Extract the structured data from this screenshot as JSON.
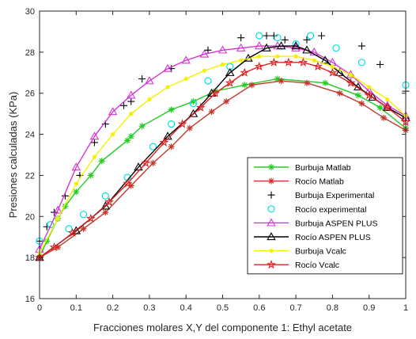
{
  "chart_data": {
    "type": "line",
    "xlabel": "Fracciones molares X,Y del componente 1: Ethyl acetate",
    "ylabel": "Presiones calculadas (KPa)",
    "xlim": [
      0,
      1
    ],
    "ylim": [
      16,
      30
    ],
    "xticks": [
      0,
      0.1,
      0.2,
      0.3,
      0.4,
      0.5,
      0.6,
      0.7,
      0.8,
      0.9,
      1
    ],
    "xtick_labels": [
      "0",
      "0.1",
      "0.2",
      "0.3",
      "0.4",
      "0.5",
      "0.6",
      "0.7",
      "0.8",
      "0.9",
      "1"
    ],
    "yticks": [
      16,
      18,
      20,
      22,
      24,
      26,
      28,
      30
    ],
    "ytick_labels": [
      "16",
      "18",
      "20",
      "22",
      "24",
      "26",
      "28",
      "30"
    ],
    "grid": false,
    "legend_position": "bottom-right",
    "series": [
      {
        "name": "Burbuja Matlab",
        "color": "#22cc22",
        "marker": "asterisk",
        "line": true,
        "x": [
          0,
          0.02,
          0.05,
          0.07,
          0.1,
          0.14,
          0.17,
          0.24,
          0.25,
          0.28,
          0.36,
          0.42,
          0.48,
          0.56,
          0.65,
          0.78,
          0.87,
          0.93,
          1
        ],
        "y": [
          18.0,
          18.8,
          19.9,
          20.5,
          21.2,
          22.0,
          22.7,
          23.7,
          23.9,
          24.4,
          25.2,
          25.6,
          26.1,
          26.4,
          26.7,
          26.5,
          25.9,
          25.3,
          24.3
        ]
      },
      {
        "name": "Rocío Matlab",
        "color": "#c0392b",
        "marker": "asterisk",
        "line": true,
        "x": [
          0,
          0.05,
          0.12,
          0.18,
          0.25,
          0.31,
          0.36,
          0.41,
          0.47,
          0.51,
          0.58,
          0.66,
          0.73,
          0.82,
          0.88,
          0.94,
          1
        ],
        "y": [
          18.0,
          18.5,
          19.4,
          20.2,
          21.5,
          22.6,
          23.4,
          24.3,
          25.1,
          25.6,
          26.4,
          26.6,
          26.5,
          26.0,
          25.5,
          24.8,
          24.2
        ]
      },
      {
        "name": "Burbuja Experimental",
        "color": "#000000",
        "marker": "plus",
        "line": false,
        "x": [
          0,
          0.02,
          0.04,
          0.07,
          0.11,
          0.15,
          0.18,
          0.23,
          0.25,
          0.28,
          0.36,
          0.46,
          0.55,
          0.62,
          0.64,
          0.67,
          0.73,
          0.77,
          0.88,
          0.93,
          1
        ],
        "y": [
          18.8,
          19.5,
          20.2,
          21.0,
          22.0,
          23.6,
          24.5,
          25.4,
          25.6,
          26.7,
          27.2,
          28.1,
          28.7,
          28.8,
          28.8,
          28.6,
          28.6,
          28.8,
          28.3,
          27.4,
          26.1
        ]
      },
      {
        "name": "Rocío experimental",
        "color": "#00e0e0",
        "marker": "circle",
        "line": false,
        "x": [
          0,
          0.03,
          0.08,
          0.12,
          0.18,
          0.24,
          0.31,
          0.36,
          0.42,
          0.46,
          0.52,
          0.6,
          0.65,
          0.7,
          0.74,
          0.81,
          0.88,
          1
        ],
        "y": [
          18.8,
          19.6,
          19.4,
          20.1,
          21.0,
          21.9,
          23.4,
          24.5,
          25.5,
          26.6,
          27.3,
          28.8,
          28.7,
          28.4,
          28.8,
          28.2,
          27.5,
          26.4
        ]
      },
      {
        "name": "Burbuja ASPEN PLUS",
        "color": "#d633d6",
        "marker": "triangle",
        "line": true,
        "x": [
          0,
          0.05,
          0.1,
          0.15,
          0.2,
          0.25,
          0.3,
          0.35,
          0.4,
          0.45,
          0.5,
          0.55,
          0.6,
          0.65,
          0.7,
          0.75,
          0.8,
          0.85,
          0.9,
          0.95,
          1
        ],
        "y": [
          18.4,
          20.3,
          22.4,
          23.9,
          25.1,
          25.9,
          26.6,
          27.2,
          27.6,
          27.9,
          28.1,
          28.2,
          28.3,
          28.3,
          28.2,
          28.0,
          27.5,
          26.9,
          26.1,
          25.4,
          24.9
        ]
      },
      {
        "name": "Rocío ASPEN PLUS",
        "color": "#000000",
        "marker": "triangle",
        "line": true,
        "x": [
          0,
          0.1,
          0.18,
          0.27,
          0.35,
          0.42,
          0.47,
          0.52,
          0.57,
          0.62,
          0.66,
          0.7,
          0.73,
          0.78,
          0.82,
          0.87,
          0.91,
          0.95,
          1
        ],
        "y": [
          18.0,
          19.3,
          20.5,
          22.4,
          23.9,
          25.0,
          26.0,
          27.0,
          27.7,
          28.2,
          28.3,
          28.3,
          28.1,
          27.6,
          27.0,
          26.3,
          25.8,
          25.3,
          24.8
        ]
      },
      {
        "name": "Burbuja Vcalc",
        "color": "#f2f200",
        "marker": "dot",
        "line": true,
        "x": [
          0,
          0.05,
          0.1,
          0.15,
          0.2,
          0.25,
          0.3,
          0.35,
          0.4,
          0.45,
          0.5,
          0.55,
          0.6,
          0.65,
          0.7,
          0.75,
          0.8,
          0.85,
          0.9,
          0.95,
          1
        ],
        "y": [
          18.2,
          19.9,
          21.6,
          22.9,
          24.0,
          25.0,
          25.7,
          26.3,
          26.7,
          27.1,
          27.4,
          27.6,
          27.8,
          27.8,
          27.8,
          27.6,
          27.3,
          26.9,
          26.3,
          25.7,
          24.9
        ]
      },
      {
        "name": "Rocío Vcalc",
        "color": "#dd2222",
        "marker": "star",
        "line": true,
        "x": [
          0,
          0.04,
          0.09,
          0.14,
          0.19,
          0.24,
          0.29,
          0.34,
          0.39,
          0.44,
          0.48,
          0.52,
          0.56,
          0.6,
          0.64,
          0.68,
          0.72,
          0.76,
          0.8,
          0.85,
          0.9,
          0.95,
          1
        ],
        "y": [
          18.0,
          18.5,
          19.2,
          19.9,
          20.7,
          21.6,
          22.6,
          23.6,
          24.5,
          25.3,
          26.0,
          26.5,
          27.0,
          27.3,
          27.5,
          27.5,
          27.5,
          27.3,
          27.0,
          26.5,
          25.9,
          25.3,
          24.6
        ]
      }
    ]
  }
}
